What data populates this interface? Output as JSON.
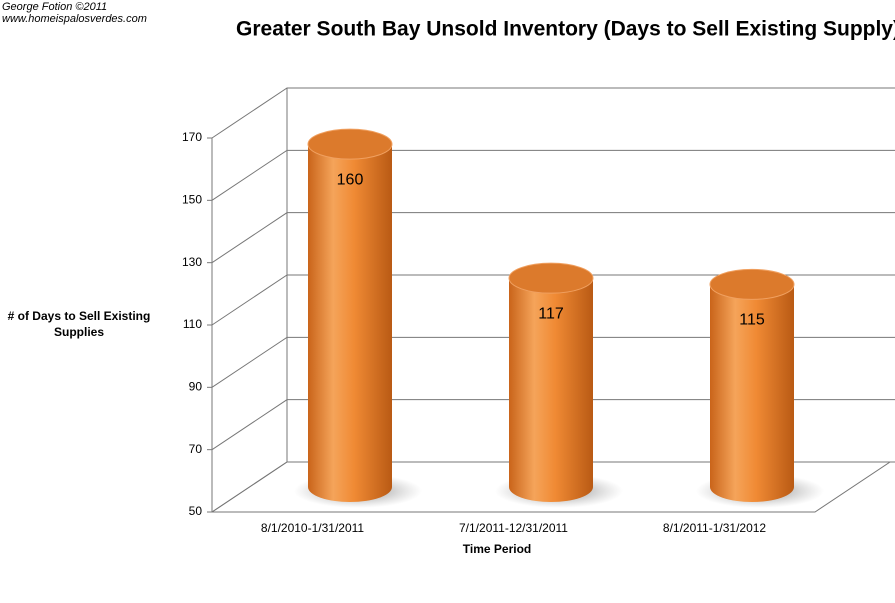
{
  "chart_data": {
    "type": "bar3d",
    "title": "Greater South Bay Unsold Inventory (Days to Sell Existing Supply)",
    "credits": [
      "George Fotion ©2011",
      "www.homeispalosverdes.com"
    ],
    "y_label": "# of Days to Sell Existing Supplies",
    "x_label": "Time Period",
    "categories": [
      "8/1/2010-1/31/2011",
      "7/1/2011-12/31/2011",
      "8/1/2011-1/31/2012"
    ],
    "values": [
      160,
      117,
      115
    ],
    "color": "#e8822a",
    "ylim": [
      50,
      170
    ],
    "yticks": [
      50,
      70,
      90,
      110,
      130,
      150,
      170
    ],
    "grid": true
  }
}
